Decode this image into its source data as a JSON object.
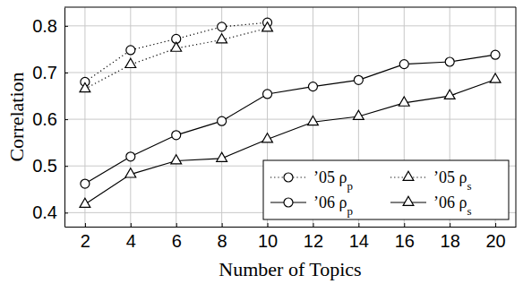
{
  "chart_data": {
    "type": "line",
    "x_label": "Number of Topics",
    "y_label": "Correlation",
    "xlim": [
      1.1,
      20.9
    ],
    "ylim": [
      0.37,
      0.84
    ],
    "xticks": [
      2,
      4,
      6,
      8,
      10,
      12,
      14,
      16,
      18,
      20
    ],
    "yticks": [
      0.4,
      0.5,
      0.6,
      0.7,
      0.8
    ],
    "grid": true,
    "legend": "lower right",
    "series": [
      {
        "name": "’05 ρp",
        "color": "#000000",
        "marker": "circle",
        "line_style": "dotted",
        "x": [
          2,
          4,
          6,
          8,
          10
        ],
        "values": [
          0.68,
          0.748,
          0.772,
          0.798,
          0.807
        ]
      },
      {
        "name": "’05 ρs",
        "color": "#000000",
        "marker": "triangle",
        "line_style": "dotted",
        "x": [
          2,
          4,
          6,
          8,
          10
        ],
        "values": [
          0.665,
          0.717,
          0.752,
          0.77,
          0.795
        ]
      },
      {
        "name": "’06 ρp",
        "color": "#000000",
        "marker": "circle",
        "line_style": "solid",
        "x": [
          2,
          4,
          6,
          8,
          10,
          12,
          14,
          16,
          18,
          20
        ],
        "values": [
          0.462,
          0.52,
          0.566,
          0.596,
          0.654,
          0.67,
          0.684,
          0.718,
          0.723,
          0.738
        ]
      },
      {
        "name": "’06 ρs",
        "color": "#000000",
        "marker": "triangle",
        "line_style": "solid",
        "x": [
          2,
          4,
          6,
          8,
          10,
          12,
          14,
          16,
          18,
          20
        ],
        "values": [
          0.418,
          0.482,
          0.511,
          0.516,
          0.557,
          0.594,
          0.606,
          0.635,
          0.65,
          0.685
        ]
      }
    ]
  }
}
